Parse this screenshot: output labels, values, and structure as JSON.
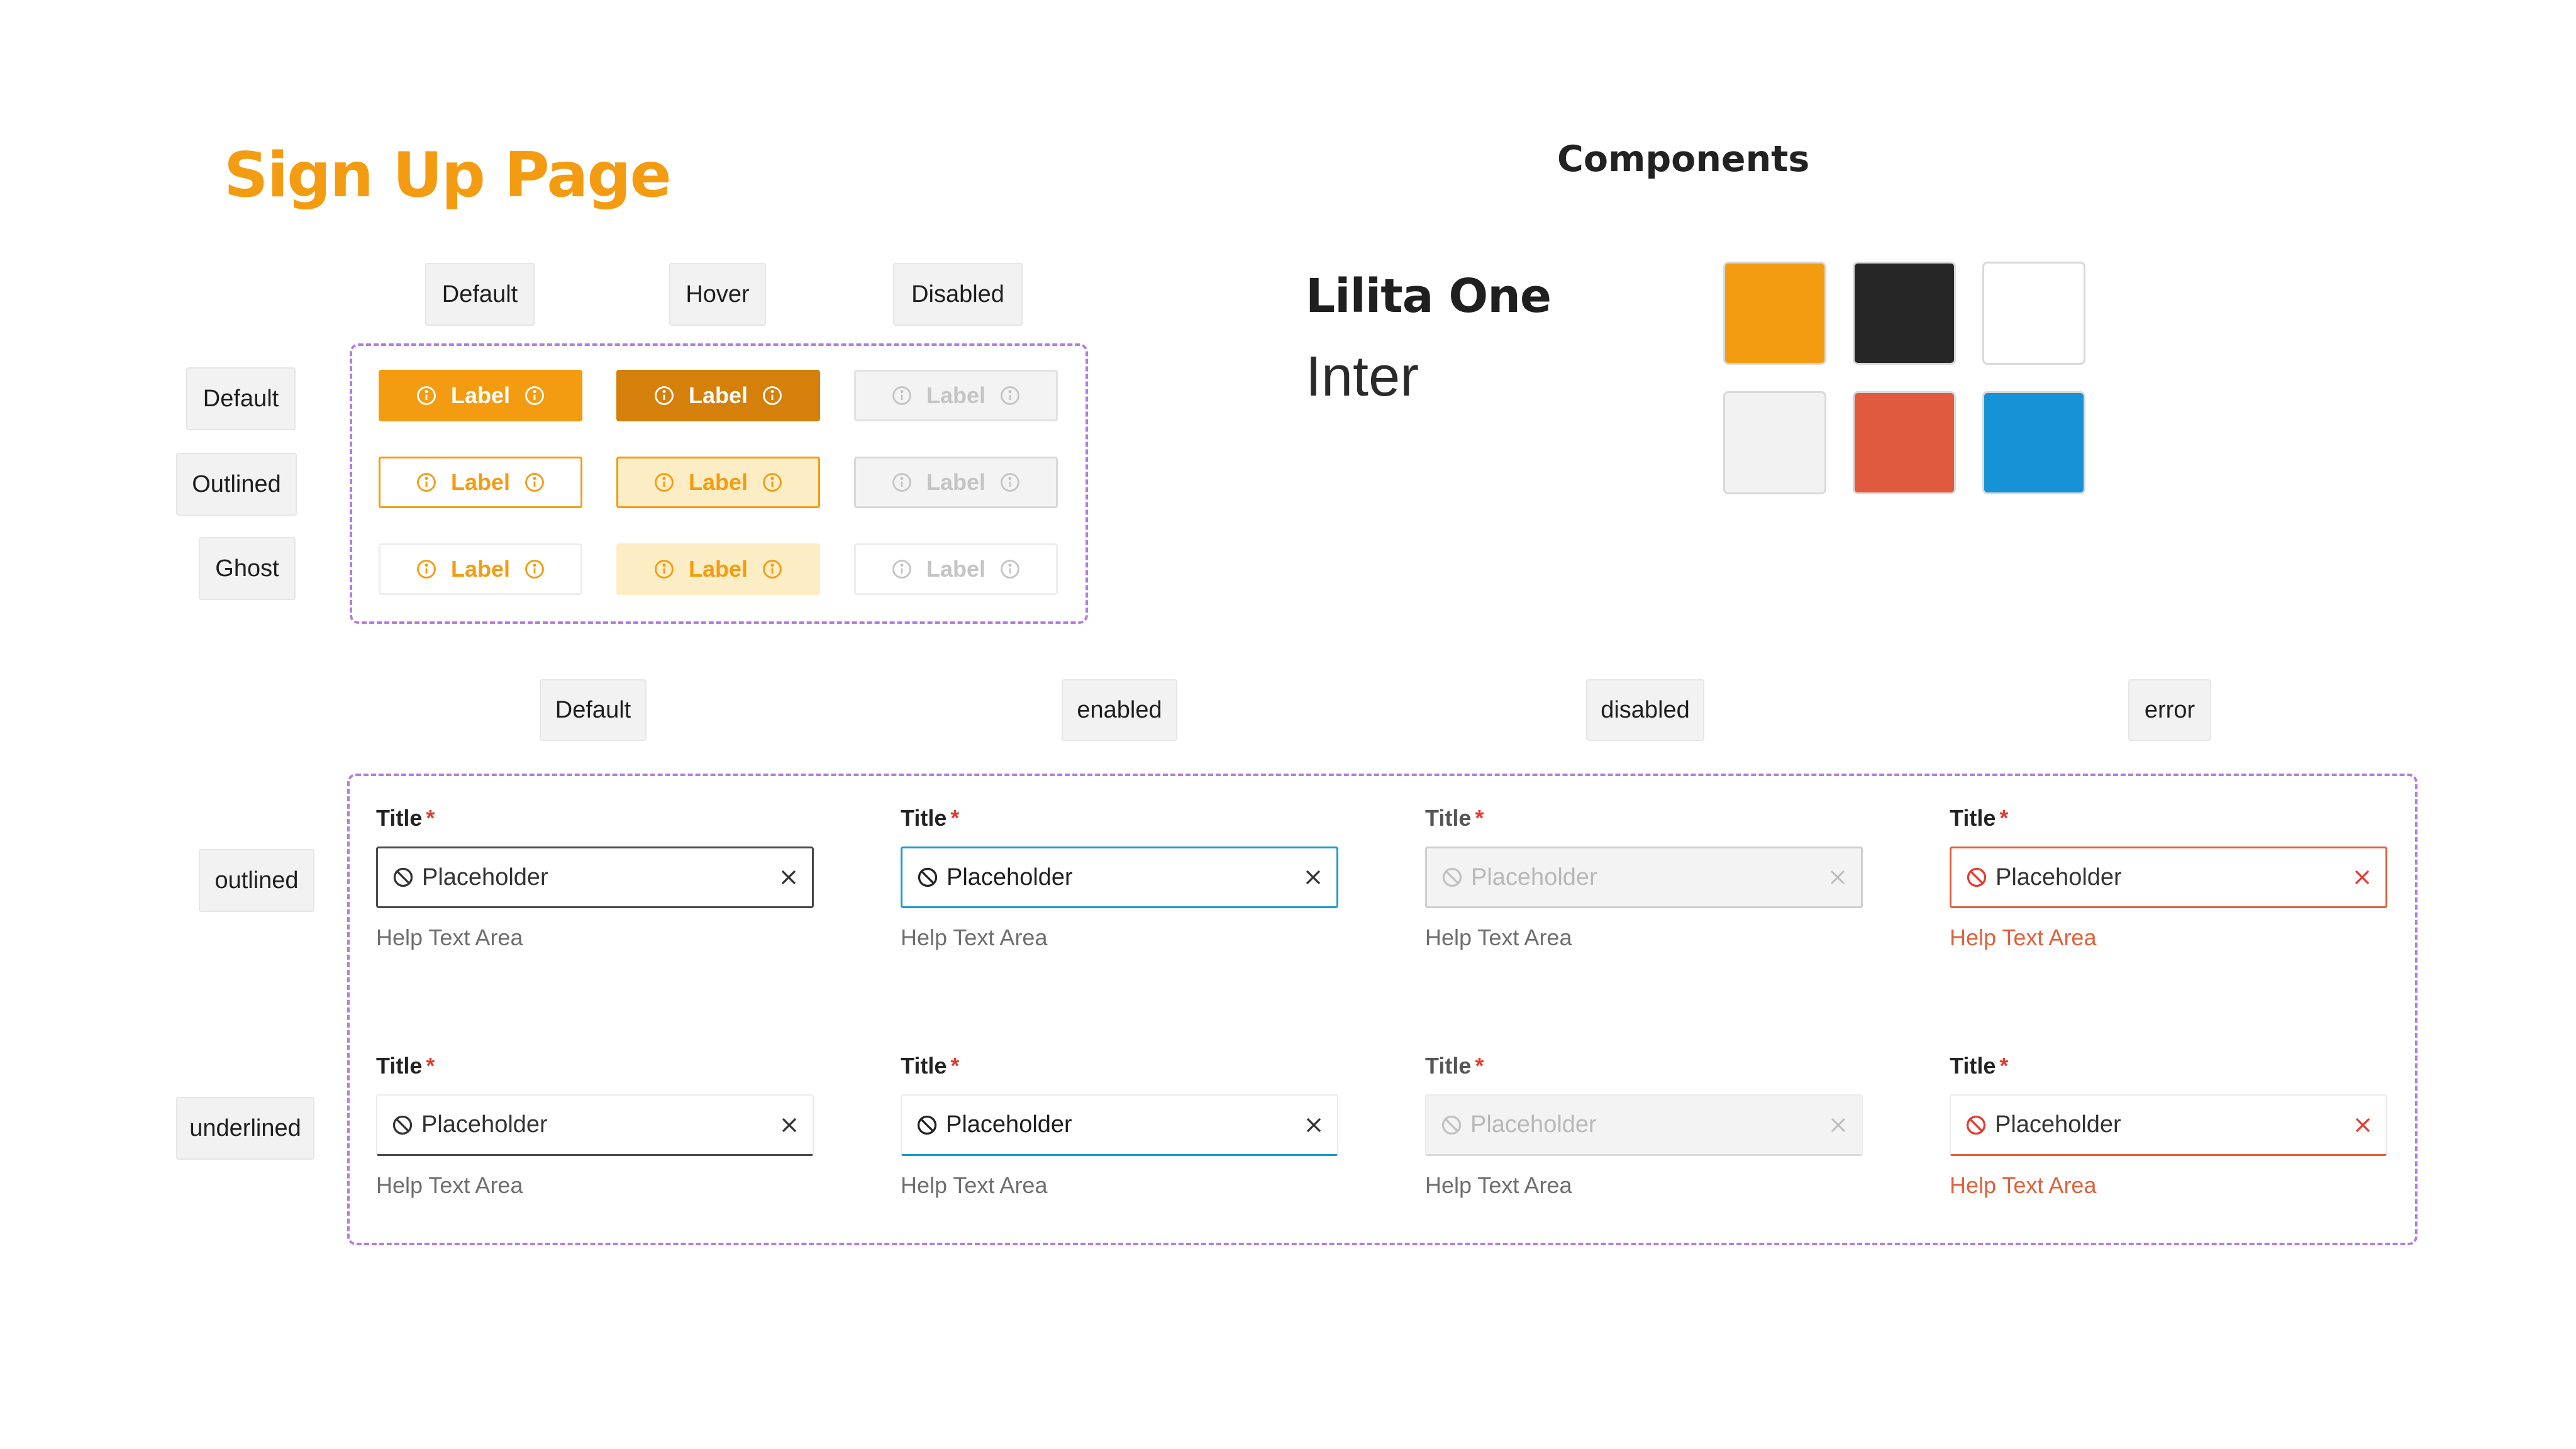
{
  "page_title": "Sign Up Page",
  "section_title": "Components",
  "button_grid": {
    "column_headers": [
      "Default",
      "Hover",
      "Disabled"
    ],
    "row_headers": [
      "Default",
      "Outlined",
      "Ghost"
    ],
    "label": "Label"
  },
  "fonts": {
    "primary": "Lilita One",
    "secondary": "Inter"
  },
  "palette": [
    "#F39C12",
    "#262626",
    "#FFFFFF",
    "#F2F2F2",
    "#DF5A3F",
    "#1593D6"
  ],
  "input_grid": {
    "column_headers": [
      "Default",
      "enabled",
      "disabled",
      "error"
    ],
    "row_headers": [
      "outlined",
      "underlined"
    ],
    "title": "Title",
    "required_mark": "*",
    "placeholder": "Placeholder",
    "help": "Help Text Area"
  },
  "icons": {
    "button_leading": "info-circle-icon",
    "button_trailing": "info-circle-icon",
    "input_leading": "ban-icon",
    "input_trailing": "close-icon"
  },
  "colors": {
    "accent": "#F39C12",
    "accent_hover": "#D4800A",
    "focus": "#1E9ACB",
    "error": "#E0603A",
    "required": "#E03C31",
    "frame": "#B57BE3"
  }
}
